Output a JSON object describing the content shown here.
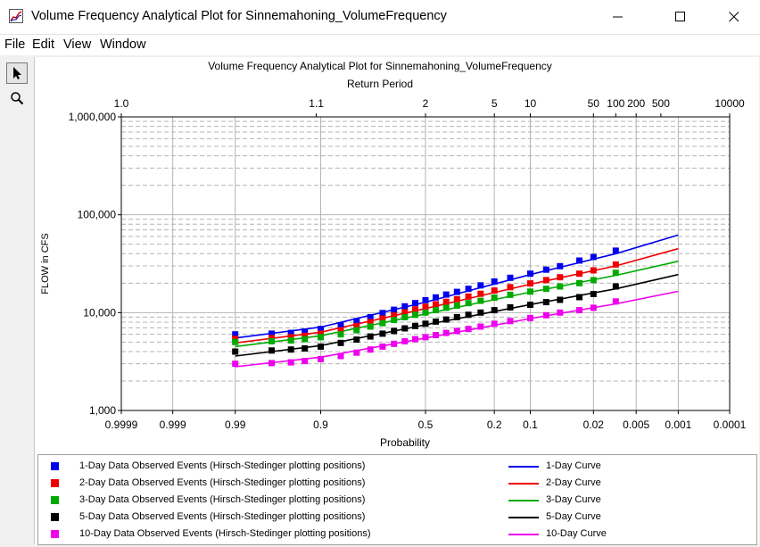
{
  "window": {
    "title": "Volume Frequency Analytical Plot for Sinnemahoning_VolumeFrequency",
    "icon": "chart-app-icon",
    "controls": [
      "minimize-icon",
      "maximize-icon",
      "close-icon"
    ]
  },
  "menu": [
    "File",
    "Edit",
    "View",
    "Window"
  ],
  "tools": [
    "pointer-icon",
    "zoom-icon"
  ],
  "chart_data": {
    "type": "scatter",
    "title": "Volume Frequency Analytical Plot for Sinnemahoning_VolumeFrequency",
    "top_axis_label": "Return Period",
    "top_ticks": [
      "1.0",
      "1.1",
      "2",
      "5",
      "10",
      "50",
      "100",
      "200",
      "500",
      "10000"
    ],
    "xlabel": "Probability",
    "x_ticks": [
      "0.9999",
      "0.999",
      "0.99",
      "0.9",
      "0.5",
      "0.2",
      "0.1",
      "0.02",
      "0.005",
      "0.001",
      "0.0001"
    ],
    "x_scale": "normal-probability, exceedance decreasing left to right",
    "xlim": [
      0.9999,
      0.0001
    ],
    "ylabel": "FLOW in CFS",
    "y_ticks": [
      "1,000",
      "10,000",
      "100,000",
      "1,000,000"
    ],
    "y_scale": "log",
    "ylim": [
      1000,
      1000000
    ],
    "grid": true,
    "legend_position": "bottom",
    "series": [
      {
        "name": "1-Day Data Observed Events (Hirsch-Stedinger plotting positions)",
        "kind": "points",
        "color": "#0000ee",
        "points": [
          [
            0.99,
            6000
          ],
          [
            0.97,
            6100
          ],
          [
            0.95,
            6200
          ],
          [
            0.93,
            6400
          ],
          [
            0.9,
            6800
          ],
          [
            0.85,
            7400
          ],
          [
            0.8,
            8200
          ],
          [
            0.75,
            9000
          ],
          [
            0.7,
            9900
          ],
          [
            0.65,
            10700
          ],
          [
            0.6,
            11600
          ],
          [
            0.55,
            12500
          ],
          [
            0.5,
            13400
          ],
          [
            0.45,
            14300
          ],
          [
            0.4,
            15300
          ],
          [
            0.35,
            16300
          ],
          [
            0.3,
            17500
          ],
          [
            0.25,
            19000
          ],
          [
            0.2,
            20800
          ],
          [
            0.15,
            22700
          ],
          [
            0.1,
            25000
          ],
          [
            0.07,
            27500
          ],
          [
            0.05,
            29800
          ],
          [
            0.03,
            34000
          ],
          [
            0.02,
            37000
          ],
          [
            0.01,
            43000
          ]
        ]
      },
      {
        "name": "2-Day Data Observed Events (Hirsch-Stedinger plotting positions)",
        "kind": "points",
        "color": "#ee0000",
        "points": [
          [
            0.99,
            5400
          ],
          [
            0.97,
            5500
          ],
          [
            0.95,
            5600
          ],
          [
            0.93,
            5800
          ],
          [
            0.9,
            6100
          ],
          [
            0.85,
            6600
          ],
          [
            0.8,
            7300
          ],
          [
            0.75,
            8000
          ],
          [
            0.7,
            8700
          ],
          [
            0.65,
            9400
          ],
          [
            0.6,
            10100
          ],
          [
            0.55,
            10800
          ],
          [
            0.5,
            11500
          ],
          [
            0.45,
            12200
          ],
          [
            0.4,
            12900
          ],
          [
            0.35,
            13700
          ],
          [
            0.3,
            14600
          ],
          [
            0.25,
            15600
          ],
          [
            0.2,
            16800
          ],
          [
            0.15,
            18200
          ],
          [
            0.1,
            19900
          ],
          [
            0.07,
            21500
          ],
          [
            0.05,
            23000
          ],
          [
            0.03,
            25000
          ],
          [
            0.02,
            27000
          ],
          [
            0.01,
            31000
          ]
        ]
      },
      {
        "name": "3-Day Data Observed Events (Hirsch-Stedinger plotting positions)",
        "kind": "points",
        "color": "#00aa00",
        "points": [
          [
            0.99,
            5000
          ],
          [
            0.97,
            5100
          ],
          [
            0.95,
            5200
          ],
          [
            0.93,
            5350
          ],
          [
            0.9,
            5600
          ],
          [
            0.85,
            6000
          ],
          [
            0.8,
            6600
          ],
          [
            0.75,
            7200
          ],
          [
            0.7,
            7800
          ],
          [
            0.65,
            8400
          ],
          [
            0.6,
            9000
          ],
          [
            0.55,
            9500
          ],
          [
            0.5,
            10000
          ],
          [
            0.45,
            10600
          ],
          [
            0.4,
            11200
          ],
          [
            0.35,
            11800
          ],
          [
            0.3,
            12500
          ],
          [
            0.25,
            13200
          ],
          [
            0.2,
            14200
          ],
          [
            0.15,
            15200
          ],
          [
            0.1,
            16400
          ],
          [
            0.07,
            17500
          ],
          [
            0.05,
            18500
          ],
          [
            0.03,
            20000
          ],
          [
            0.02,
            21500
          ],
          [
            0.01,
            25500
          ]
        ]
      },
      {
        "name": "5-Day Data Observed Events (Hirsch-Stedinger plotting positions)",
        "kind": "points",
        "color": "#000000",
        "points": [
          [
            0.99,
            4000
          ],
          [
            0.97,
            4100
          ],
          [
            0.95,
            4200
          ],
          [
            0.93,
            4300
          ],
          [
            0.9,
            4500
          ],
          [
            0.85,
            4900
          ],
          [
            0.8,
            5300
          ],
          [
            0.75,
            5700
          ],
          [
            0.7,
            6100
          ],
          [
            0.65,
            6500
          ],
          [
            0.6,
            6900
          ],
          [
            0.55,
            7300
          ],
          [
            0.5,
            7700
          ],
          [
            0.45,
            8100
          ],
          [
            0.4,
            8500
          ],
          [
            0.35,
            9000
          ],
          [
            0.3,
            9500
          ],
          [
            0.25,
            10000
          ],
          [
            0.2,
            10600
          ],
          [
            0.15,
            11300
          ],
          [
            0.1,
            12000
          ],
          [
            0.07,
            12800
          ],
          [
            0.05,
            13500
          ],
          [
            0.03,
            14400
          ],
          [
            0.02,
            15500
          ],
          [
            0.01,
            18500
          ]
        ]
      },
      {
        "name": "10-Day Data Observed Events (Hirsch-Stedinger plotting positions)",
        "kind": "points",
        "color": "#ee00ee",
        "points": [
          [
            0.99,
            3000
          ],
          [
            0.97,
            3050
          ],
          [
            0.95,
            3100
          ],
          [
            0.93,
            3200
          ],
          [
            0.9,
            3350
          ],
          [
            0.85,
            3600
          ],
          [
            0.8,
            3900
          ],
          [
            0.75,
            4200
          ],
          [
            0.7,
            4500
          ],
          [
            0.65,
            4800
          ],
          [
            0.6,
            5100
          ],
          [
            0.55,
            5350
          ],
          [
            0.5,
            5600
          ],
          [
            0.45,
            5900
          ],
          [
            0.4,
            6200
          ],
          [
            0.35,
            6500
          ],
          [
            0.3,
            6800
          ],
          [
            0.25,
            7200
          ],
          [
            0.2,
            7700
          ],
          [
            0.15,
            8200
          ],
          [
            0.1,
            8800
          ],
          [
            0.07,
            9400
          ],
          [
            0.05,
            10000
          ],
          [
            0.03,
            10600
          ],
          [
            0.02,
            11200
          ],
          [
            0.01,
            13000
          ]
        ]
      },
      {
        "name": "1-Day Curve",
        "kind": "line",
        "color": "#0000ee",
        "points": [
          [
            0.99,
            5500
          ],
          [
            0.9,
            7100
          ],
          [
            0.5,
            12800
          ],
          [
            0.1,
            24500
          ],
          [
            0.01,
            40000
          ],
          [
            0.001,
            62000
          ]
        ]
      },
      {
        "name": "2-Day Curve",
        "kind": "line",
        "color": "#ee0000",
        "points": [
          [
            0.99,
            4900
          ],
          [
            0.9,
            6300
          ],
          [
            0.5,
            11000
          ],
          [
            0.1,
            19500
          ],
          [
            0.01,
            30000
          ],
          [
            0.001,
            45000
          ]
        ]
      },
      {
        "name": "3-Day Curve",
        "kind": "line",
        "color": "#00aa00",
        "points": [
          [
            0.99,
            4500
          ],
          [
            0.9,
            5800
          ],
          [
            0.5,
            9700
          ],
          [
            0.1,
            16200
          ],
          [
            0.01,
            24000
          ],
          [
            0.001,
            33500
          ]
        ]
      },
      {
        "name": "5-Day Curve",
        "kind": "line",
        "color": "#000000",
        "points": [
          [
            0.99,
            3600
          ],
          [
            0.9,
            4600
          ],
          [
            0.5,
            7500
          ],
          [
            0.1,
            12100
          ],
          [
            0.01,
            17500
          ],
          [
            0.001,
            24500
          ]
        ]
      },
      {
        "name": "10-Day Curve",
        "kind": "line",
        "color": "#ee00ee",
        "points": [
          [
            0.99,
            2800
          ],
          [
            0.9,
            3500
          ],
          [
            0.5,
            5500
          ],
          [
            0.1,
            8700
          ],
          [
            0.01,
            12300
          ],
          [
            0.001,
            16500
          ]
        ]
      }
    ]
  }
}
